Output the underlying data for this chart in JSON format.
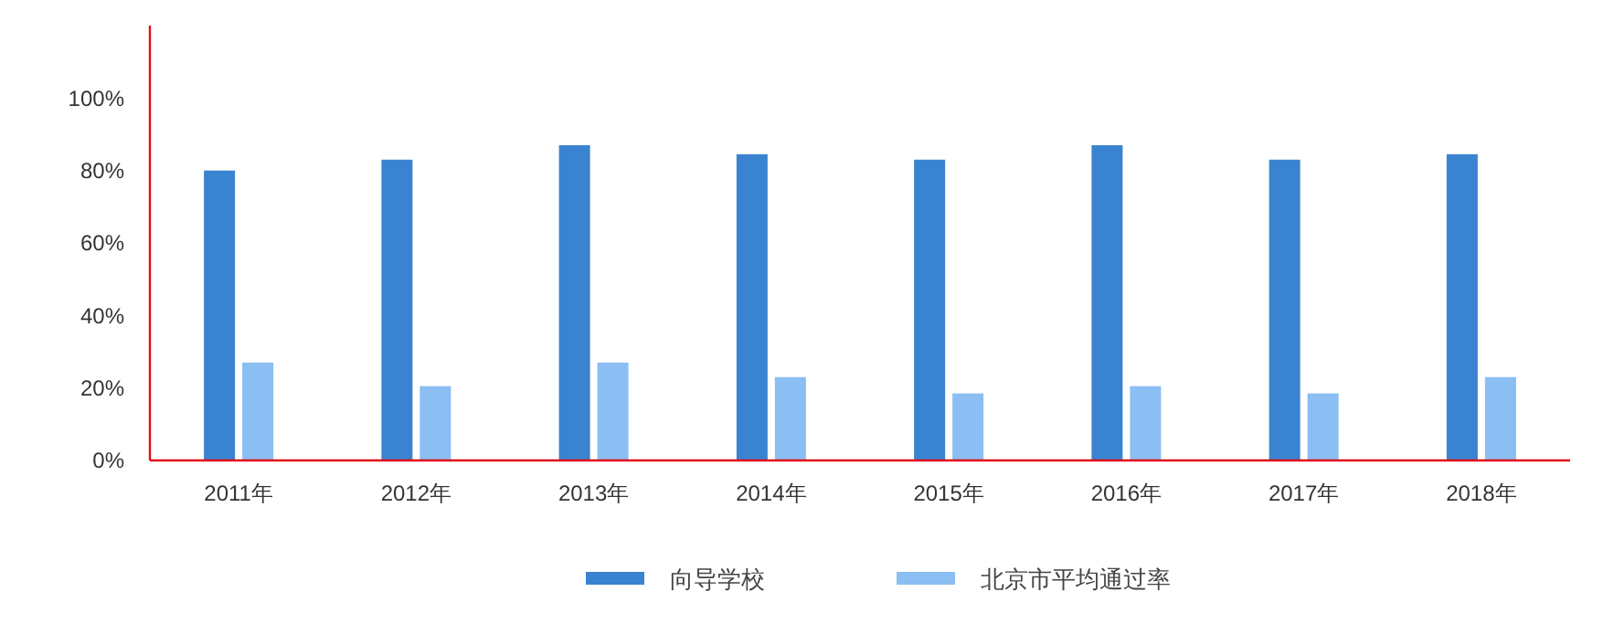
{
  "chart_data": {
    "type": "bar",
    "categories": [
      "2011年",
      "2012年",
      "2013年",
      "2014年",
      "2015年",
      "2016年",
      "2017年",
      "2018年"
    ],
    "series": [
      {
        "name": "向导学校",
        "color": "#3a83d0",
        "values": [
          80,
          83,
          87,
          84.5,
          83,
          87,
          83,
          84.5
        ]
      },
      {
        "name": "北京市平均通过率",
        "color": "#8bbef2",
        "values": [
          27,
          20.5,
          27,
          23,
          18.5,
          20.5,
          18.5,
          23
        ]
      }
    ],
    "ylim": [
      0,
      120
    ],
    "yticks": [
      {
        "value": 0,
        "label": "0%"
      },
      {
        "value": 20,
        "label": "20%"
      },
      {
        "value": 40,
        "label": "40%"
      },
      {
        "value": 60,
        "label": "60%"
      },
      {
        "value": 80,
        "label": "80%"
      },
      {
        "value": 100,
        "label": "100%"
      }
    ],
    "grid": false,
    "legend": "bottom"
  }
}
